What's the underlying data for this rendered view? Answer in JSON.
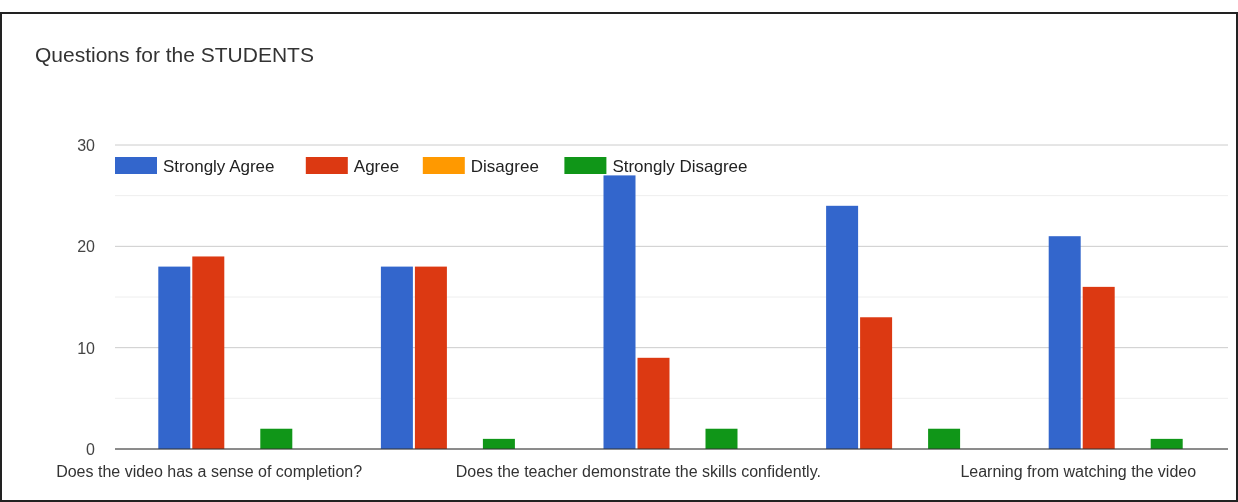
{
  "chart_data": {
    "type": "bar",
    "title": "Questions for the STUDENTS",
    "categories": [
      "Does the video has a sense of completion?",
      null,
      "Does the teacher demonstrate the skills confidently.",
      null,
      "Learning from watching the video"
    ],
    "series": [
      {
        "name": "Strongly Agree",
        "color": "#3366cc",
        "values": [
          18,
          18,
          27,
          24,
          21
        ]
      },
      {
        "name": "Agree",
        "color": "#dc3912",
        "values": [
          19,
          18,
          9,
          13,
          16
        ]
      },
      {
        "name": "Disagree",
        "color": "#ff9900",
        "values": [
          0,
          0,
          0,
          0,
          0
        ]
      },
      {
        "name": "Strongly Disagree",
        "color": "#109618",
        "values": [
          2,
          1,
          2,
          2,
          1
        ]
      }
    ],
    "ylim": [
      0,
      30
    ],
    "yticks": [
      0,
      {
        "value": 5,
        "label": null
      },
      10,
      {
        "value": 15,
        "label": null
      },
      20,
      {
        "value": 25,
        "label": null
      },
      30
    ],
    "grid": true,
    "legend": "top left"
  }
}
